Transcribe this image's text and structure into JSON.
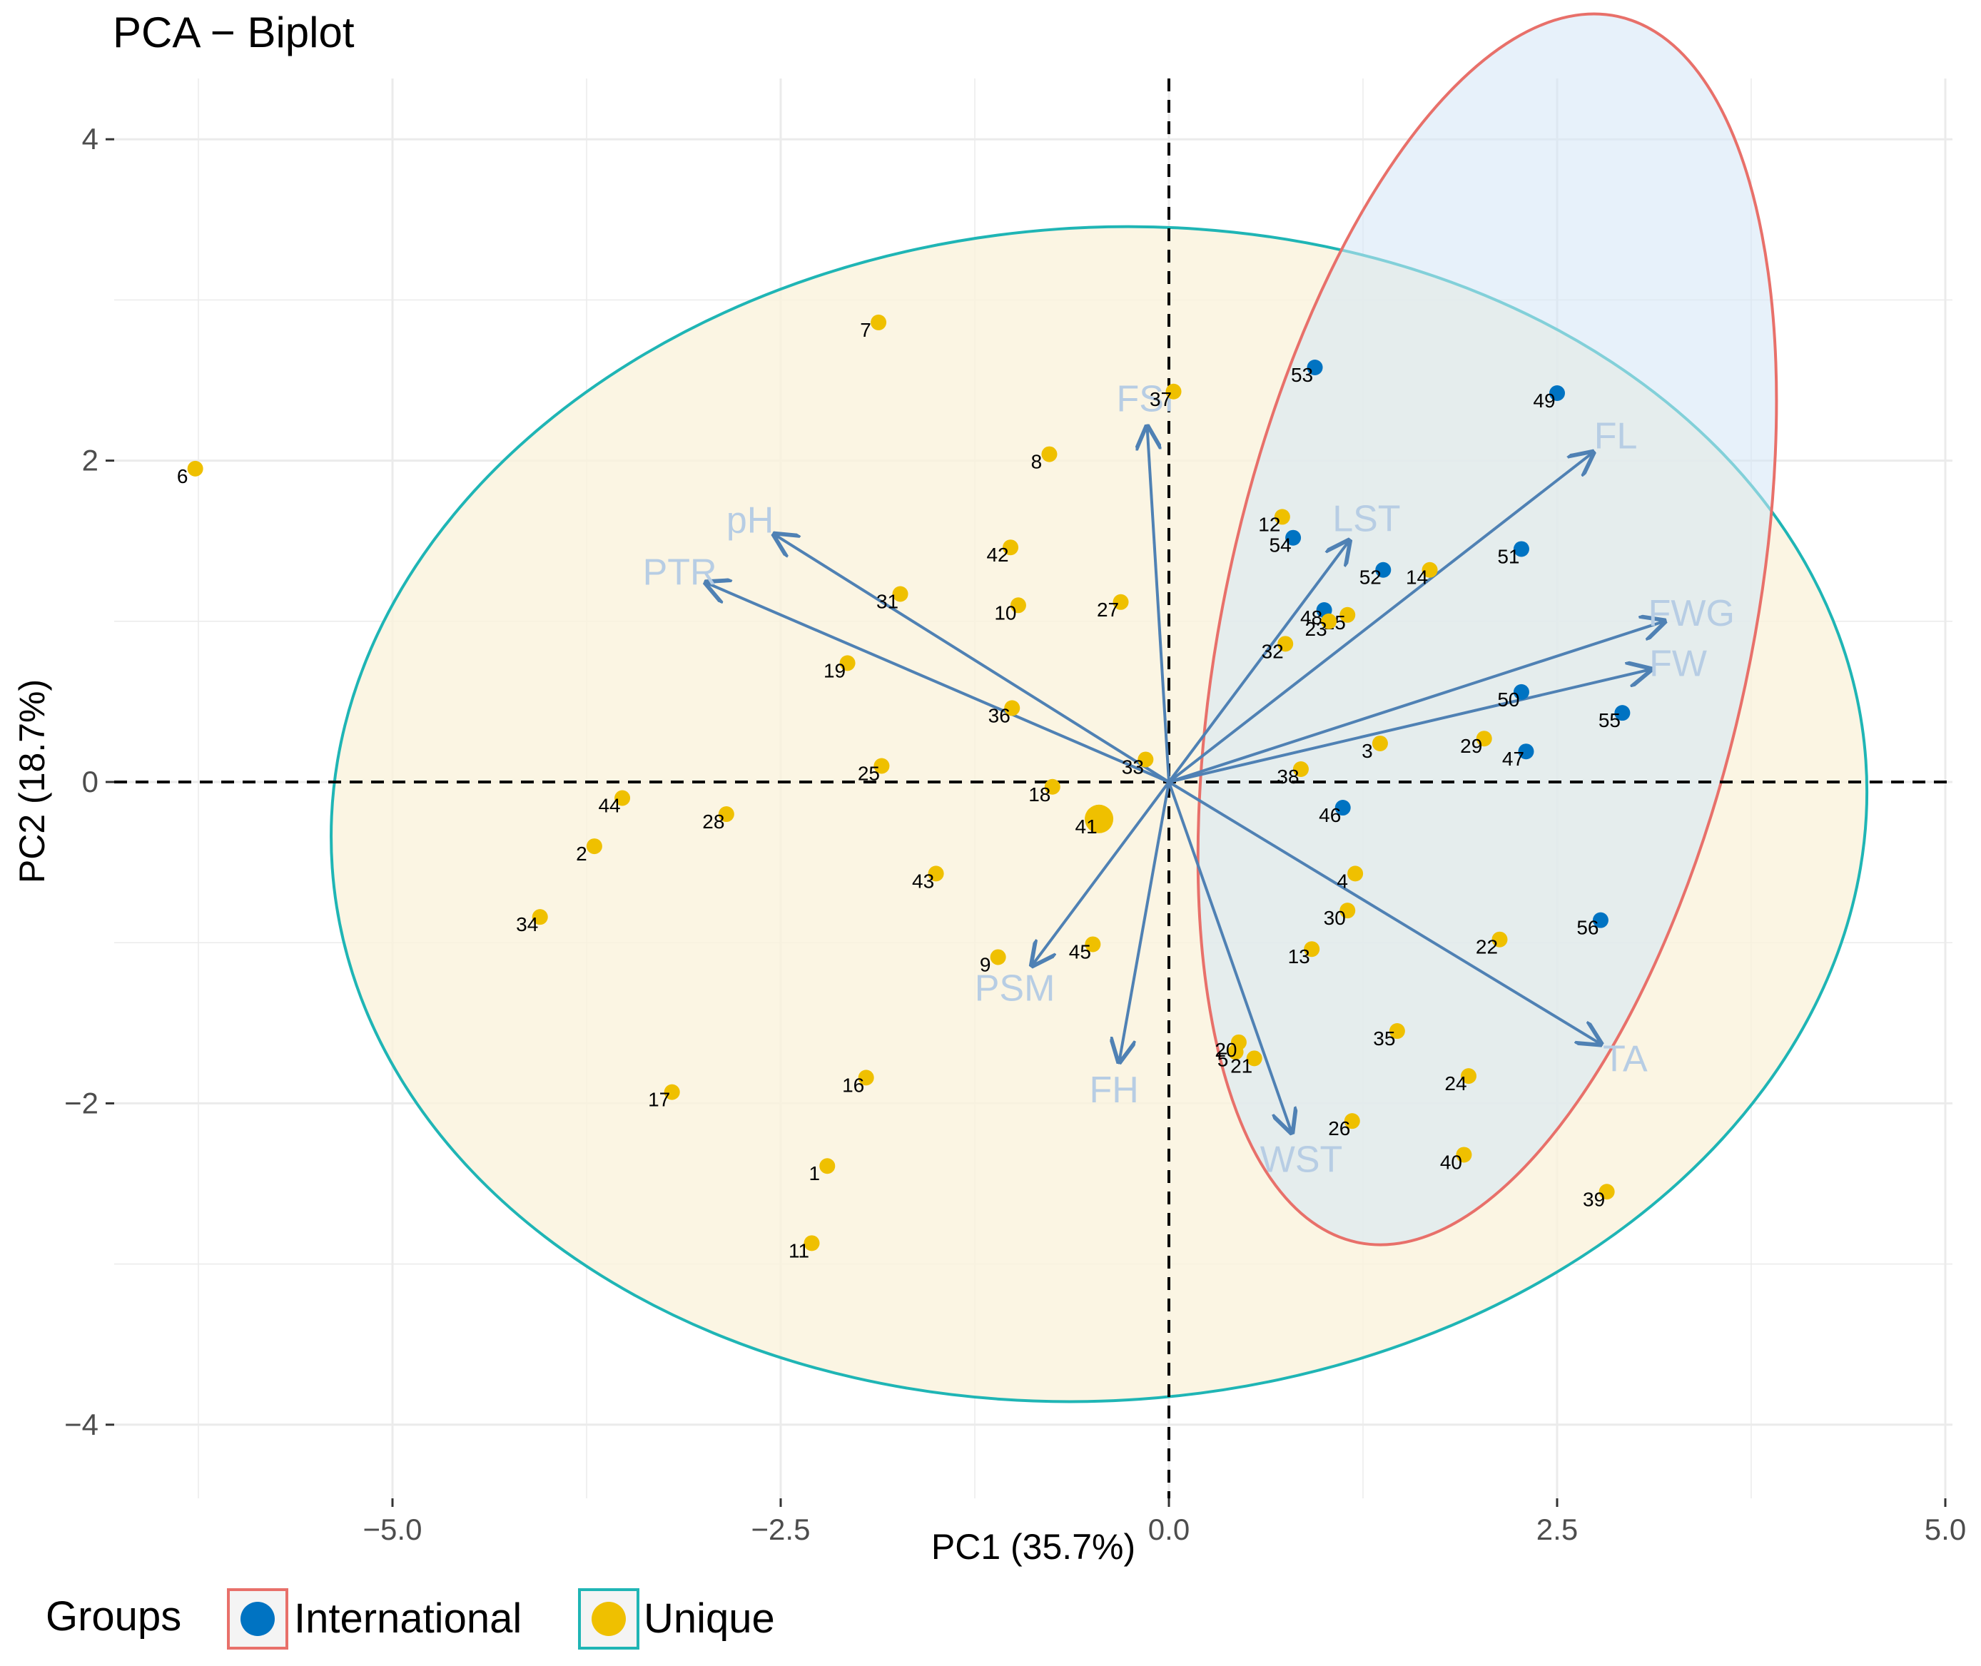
{
  "chart_data": {
    "type": "scatter",
    "title": "PCA − Biplot",
    "xlabel": "PC1 (35.7%)",
    "ylabel": "PC2 (18.7%)",
    "xlim": [
      -6.7,
      5.0
    ],
    "ylim": [
      -4.2,
      4.3
    ],
    "x_ticks": [
      {
        "value": -5.0,
        "label": "−5.0"
      },
      {
        "value": -2.5,
        "label": "−2.5"
      },
      {
        "value": 0.0,
        "label": "0.0"
      },
      {
        "value": 2.5,
        "label": "2.5"
      },
      {
        "value": 5.0,
        "label": "5.0"
      }
    ],
    "y_ticks": [
      {
        "value": 4,
        "label": "4"
      },
      {
        "value": 2,
        "label": "2"
      },
      {
        "value": 0,
        "label": "0"
      },
      {
        "value": -2,
        "label": "−2"
      },
      {
        "value": -4,
        "label": "−4"
      }
    ],
    "grid": true,
    "legend": {
      "title": "Groups",
      "position": "bottom-left",
      "entries": [
        {
          "name": "International",
          "color": "#0073C2",
          "border": "#E8706A"
        },
        {
          "name": "Unique",
          "color": "#EFC000",
          "border": "#1FB5B5"
        }
      ]
    },
    "colors": {
      "international_point": "#0073C2",
      "unique_point": "#EFC000",
      "international_ellipse_stroke": "#E8706A",
      "international_ellipse_fill": "#D4E6F5",
      "unique_ellipse_stroke": "#1FB5B5",
      "unique_ellipse_fill": "#FAF3DC",
      "arrow": "#4F81B4",
      "arrow_label": "#B7CDE4"
    },
    "ellipses": [
      {
        "group": "Unique",
        "center": [
          -0.45,
          -0.2
        ],
        "rx": 4.95,
        "ry": 3.65,
        "angle_deg": -4
      },
      {
        "group": "International",
        "center": [
          2.05,
          0.95
        ],
        "rx": 1.7,
        "ry": 3.9,
        "angle_deg": 12
      }
    ],
    "series": [
      {
        "name": "International",
        "points": [
          {
            "label": "46",
            "x": 1.12,
            "y": -0.16
          },
          {
            "label": "47",
            "x": 2.3,
            "y": 0.19
          },
          {
            "label": "48",
            "x": 1.0,
            "y": 1.07
          },
          {
            "label": "49",
            "x": 2.5,
            "y": 2.42
          },
          {
            "label": "50",
            "x": 2.27,
            "y": 0.56
          },
          {
            "label": "51",
            "x": 2.27,
            "y": 1.45
          },
          {
            "label": "52",
            "x": 1.38,
            "y": 1.32
          },
          {
            "label": "53",
            "x": 0.94,
            "y": 2.58
          },
          {
            "label": "54",
            "x": 0.8,
            "y": 1.52
          },
          {
            "label": "55",
            "x": 2.92,
            "y": 0.43
          },
          {
            "label": "56",
            "x": 2.78,
            "y": -0.86
          }
        ]
      },
      {
        "name": "Unique",
        "points": [
          {
            "label": "1",
            "x": -2.2,
            "y": -2.39
          },
          {
            "label": "2",
            "x": -3.7,
            "y": -0.4
          },
          {
            "label": "3",
            "x": 1.36,
            "y": 0.24
          },
          {
            "label": "4",
            "x": 1.2,
            "y": -0.57
          },
          {
            "label": "5",
            "x": 0.43,
            "y": -1.68
          },
          {
            "label": "6",
            "x": -6.27,
            "y": 1.95
          },
          {
            "label": "7",
            "x": -1.87,
            "y": 2.86
          },
          {
            "label": "8",
            "x": -0.77,
            "y": 2.04
          },
          {
            "label": "9",
            "x": -1.1,
            "y": -1.09
          },
          {
            "label": "10",
            "x": -0.97,
            "y": 1.1
          },
          {
            "label": "11",
            "x": -2.3,
            "y": -2.87
          },
          {
            "label": "12",
            "x": 0.73,
            "y": 1.65
          },
          {
            "label": "13",
            "x": 0.92,
            "y": -1.04
          },
          {
            "label": "14",
            "x": 1.68,
            "y": 1.32
          },
          {
            "label": "15",
            "x": 1.15,
            "y": 1.04
          },
          {
            "label": "16",
            "x": -1.95,
            "y": -1.84
          },
          {
            "label": "17",
            "x": -3.2,
            "y": -1.93
          },
          {
            "label": "18",
            "x": -0.75,
            "y": -0.03
          },
          {
            "label": "19",
            "x": -2.07,
            "y": 0.74
          },
          {
            "label": "20",
            "x": 0.45,
            "y": -1.62
          },
          {
            "label": "21",
            "x": 0.55,
            "y": -1.72
          },
          {
            "label": "22",
            "x": 2.13,
            "y": -0.98
          },
          {
            "label": "23",
            "x": 1.03,
            "y": 1.0
          },
          {
            "label": "24",
            "x": 1.93,
            "y": -1.83
          },
          {
            "label": "25",
            "x": -1.85,
            "y": 0.1
          },
          {
            "label": "26",
            "x": 1.18,
            "y": -2.11
          },
          {
            "label": "27",
            "x": -0.31,
            "y": 1.12
          },
          {
            "label": "28",
            "x": -2.85,
            "y": -0.2
          },
          {
            "label": "29",
            "x": 2.03,
            "y": 0.27
          },
          {
            "label": "30",
            "x": 1.15,
            "y": -0.8
          },
          {
            "label": "31",
            "x": -1.73,
            "y": 1.17
          },
          {
            "label": "32",
            "x": 0.75,
            "y": 0.86
          },
          {
            "label": "33",
            "x": -0.15,
            "y": 0.14
          },
          {
            "label": "34",
            "x": -4.05,
            "y": -0.84
          },
          {
            "label": "35",
            "x": 1.47,
            "y": -1.55
          },
          {
            "label": "36",
            "x": -1.01,
            "y": 0.46
          },
          {
            "label": "37",
            "x": 0.03,
            "y": 2.43
          },
          {
            "label": "38",
            "x": 0.85,
            "y": 0.08
          },
          {
            "label": "39",
            "x": 2.82,
            "y": -2.55
          },
          {
            "label": "40",
            "x": 1.9,
            "y": -2.32
          },
          {
            "label": "41",
            "x": -0.45,
            "y": -0.23
          },
          {
            "label": "42",
            "x": -1.02,
            "y": 1.46
          },
          {
            "label": "43",
            "x": -1.5,
            "y": -0.57
          },
          {
            "label": "44",
            "x": -3.52,
            "y": -0.1
          },
          {
            "label": "45",
            "x": -0.49,
            "y": -1.01
          }
        ]
      }
    ],
    "variables": [
      {
        "name": "FSI",
        "x": -0.14,
        "y": 2.21
      },
      {
        "name": "FL",
        "x": 2.73,
        "y": 2.05
      },
      {
        "name": "LST",
        "x": 1.16,
        "y": 1.5
      },
      {
        "name": "FWG",
        "x": 3.19,
        "y": 1.0
      },
      {
        "name": "FW",
        "x": 3.1,
        "y": 0.7
      },
      {
        "name": "TA",
        "x": 2.78,
        "y": -1.63
      },
      {
        "name": "WST",
        "x": 0.79,
        "y": -2.18
      },
      {
        "name": "FH",
        "x": -0.32,
        "y": -1.74
      },
      {
        "name": "PSM",
        "x": -0.88,
        "y": -1.14
      },
      {
        "name": "pH",
        "x": -2.54,
        "y": 1.54
      },
      {
        "name": "PTR",
        "x": -2.98,
        "y": 1.24
      }
    ]
  }
}
